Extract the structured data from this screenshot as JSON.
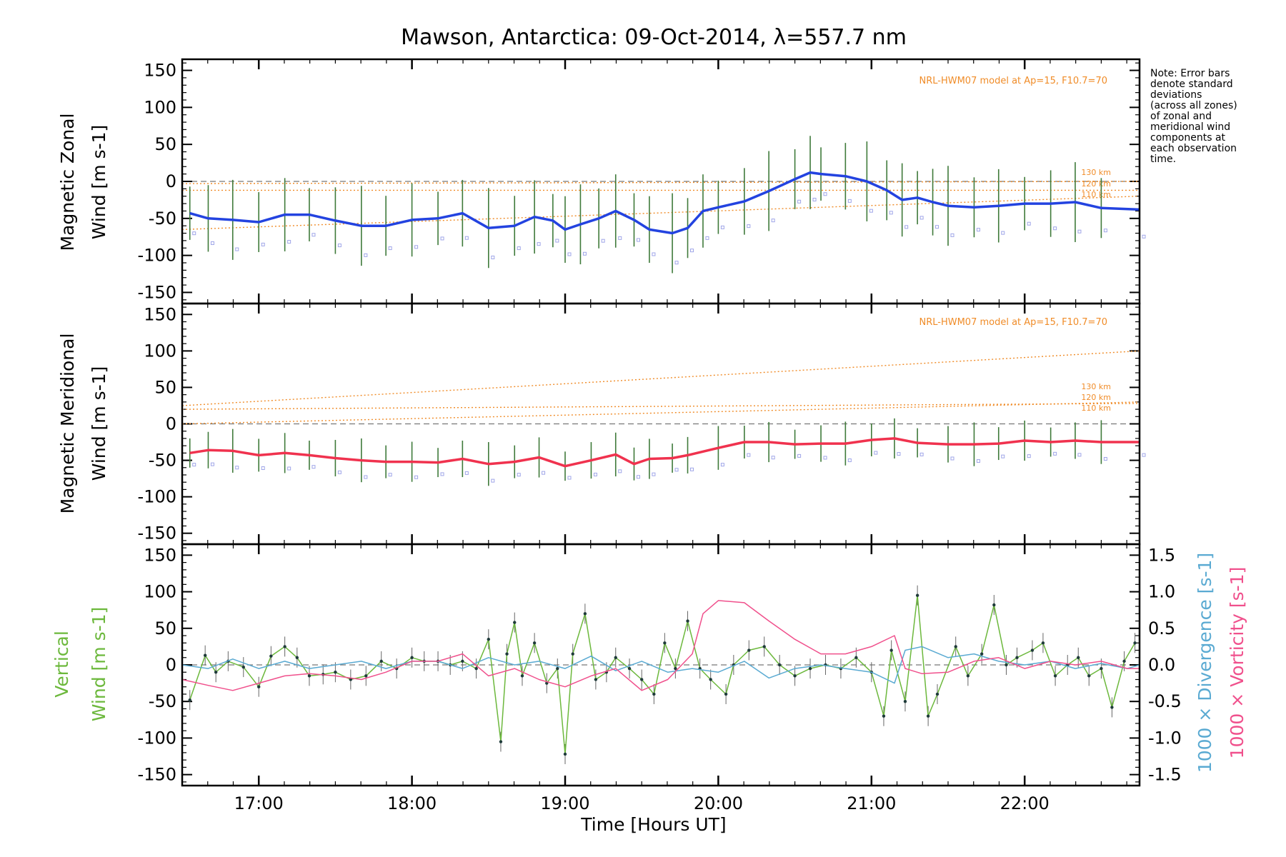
{
  "title": "Mawson, Antarctica: 09-Oct-2014, λ=557.7 nm",
  "note": [
    "Note: Error bars",
    "denote standard",
    "deviations",
    "(across all zones)",
    "of zonal and",
    "meridional wind",
    "components at",
    "each observation",
    "time."
  ],
  "xlabel": "Time [Hours UT]",
  "colors": {
    "zonal": "#2343e0",
    "meridional": "#f0324e",
    "vertical": "#6cb83c",
    "divergence": "#5aaad2",
    "vorticity": "#f0508c",
    "model": "#f08c28",
    "zone_points": "#9fa5e8"
  },
  "chart_data": [
    {
      "type": "line",
      "ylabel": [
        "Magnetic Zonal",
        "Wind [m s-1]"
      ],
      "ylim": [
        -165,
        165
      ],
      "yticks": [
        "150",
        "100",
        "50",
        "0",
        "-50",
        "-100",
        "-150"
      ],
      "xlim": [
        16.5,
        22.75
      ],
      "xticks": [
        "17:00",
        "18:00",
        "19:00",
        "20:00",
        "21:00",
        "22:00"
      ],
      "model_label": "NRL-HWM07 model at Ap=15, F10.7=70",
      "model_series": [
        {
          "name": "130 km",
          "x": [
            16.5,
            22.75
          ],
          "y": [
            -3,
            0
          ]
        },
        {
          "name": "120 km",
          "x": [
            16.5,
            22.75
          ],
          "y": [
            -12,
            -12
          ]
        },
        {
          "name": "110 km",
          "x": [
            16.5,
            22.75
          ],
          "y": [
            -65,
            -20
          ]
        }
      ],
      "series": [
        {
          "name": "Zonal wind",
          "error_bar_half": 45,
          "x": [
            16.55,
            16.67,
            16.83,
            17.0,
            17.17,
            17.33,
            17.5,
            17.67,
            17.83,
            18.0,
            18.17,
            18.33,
            18.5,
            18.67,
            18.8,
            18.92,
            19.0,
            19.1,
            19.22,
            19.33,
            19.45,
            19.55,
            19.7,
            19.8,
            19.9,
            20.0,
            20.17,
            20.33,
            20.5,
            20.6,
            20.67,
            20.83,
            20.97,
            21.1,
            21.2,
            21.3,
            21.4,
            21.5,
            21.67,
            21.83,
            22.0,
            22.17,
            22.33,
            22.5,
            22.75
          ],
          "y": [
            -43,
            -50,
            -52,
            -55,
            -45,
            -45,
            -53,
            -60,
            -60,
            -52,
            -50,
            -43,
            -63,
            -60,
            -48,
            -53,
            -65,
            -58,
            -50,
            -40,
            -52,
            -65,
            -70,
            -63,
            -40,
            -35,
            -27,
            -13,
            3,
            12,
            10,
            7,
            0,
            -12,
            -25,
            -22,
            -28,
            -33,
            -35,
            -33,
            -30,
            -30,
            -28,
            -36,
            -38
          ]
        }
      ]
    },
    {
      "type": "line",
      "ylabel": [
        "Magnetic Meridional",
        "Wind [m s-1]"
      ],
      "ylim": [
        -165,
        165
      ],
      "yticks": [
        "150",
        "100",
        "50",
        "0",
        "-50",
        "-100",
        "-150"
      ],
      "xlim": [
        16.5,
        22.75
      ],
      "xticks": [
        "17:00",
        "18:00",
        "19:00",
        "20:00",
        "21:00",
        "22:00"
      ],
      "model_label": "NRL-HWM07 model at Ap=15, F10.7=70",
      "model_series": [
        {
          "name": "130 km",
          "x": [
            16.5,
            22.75
          ],
          "y": [
            25,
            100
          ]
        },
        {
          "name": "120 km",
          "x": [
            16.5,
            22.75
          ],
          "y": [
            20,
            28
          ]
        },
        {
          "name": "110 km",
          "x": [
            16.5,
            22.75
          ],
          "y": [
            0,
            30
          ]
        }
      ],
      "series": [
        {
          "name": "Meridional wind",
          "error_bar_half": 25,
          "x": [
            16.55,
            16.67,
            16.83,
            17.0,
            17.17,
            17.33,
            17.5,
            17.67,
            17.83,
            18.0,
            18.17,
            18.33,
            18.5,
            18.67,
            18.83,
            19.0,
            19.17,
            19.33,
            19.45,
            19.55,
            19.7,
            19.8,
            20.0,
            20.17,
            20.33,
            20.5,
            20.67,
            20.83,
            21.0,
            21.15,
            21.3,
            21.5,
            21.67,
            21.83,
            22.0,
            22.17,
            22.33,
            22.5,
            22.75
          ],
          "y": [
            -40,
            -36,
            -37,
            -43,
            -40,
            -43,
            -47,
            -50,
            -52,
            -52,
            -53,
            -48,
            -55,
            -52,
            -46,
            -58,
            -50,
            -42,
            -55,
            -48,
            -47,
            -43,
            -33,
            -25,
            -25,
            -28,
            -27,
            -27,
            -22,
            -20,
            -26,
            -28,
            -28,
            -27,
            -23,
            -25,
            -23,
            -25,
            -25
          ]
        }
      ]
    },
    {
      "type": "line",
      "ylabel": [
        "Vertical",
        "Wind [m s-1]"
      ],
      "ylim": [
        -165,
        165
      ],
      "yticks": [
        "150",
        "100",
        "50",
        "0",
        "-50",
        "-100",
        "-150"
      ],
      "y2label": [
        "1000 × Divergence [s-1]",
        "1000 × Vorticity [s-1]"
      ],
      "y2lim": [
        -1.65,
        1.65
      ],
      "y2ticks": [
        "1.5",
        "1.0",
        "0.5",
        "0.0",
        "-0.5",
        "-1.0",
        "-1.5"
      ],
      "xlim": [
        16.5,
        22.75
      ],
      "xticks": [
        "17:00",
        "18:00",
        "19:00",
        "20:00",
        "21:00",
        "22:00"
      ],
      "series": [
        {
          "name": "Vertical wind",
          "axis": "left",
          "x": [
            16.55,
            16.65,
            16.72,
            16.8,
            16.9,
            17.0,
            17.08,
            17.17,
            17.25,
            17.33,
            17.42,
            17.5,
            17.6,
            17.7,
            17.8,
            17.9,
            18.0,
            18.08,
            18.17,
            18.25,
            18.33,
            18.42,
            18.5,
            18.58,
            18.62,
            18.67,
            18.72,
            18.8,
            18.88,
            18.95,
            19.0,
            19.05,
            19.13,
            19.2,
            19.27,
            19.33,
            19.42,
            19.5,
            19.58,
            19.65,
            19.72,
            19.8,
            19.88,
            19.95,
            20.05,
            20.1,
            20.2,
            20.3,
            20.4,
            20.5,
            20.6,
            20.7,
            20.8,
            20.9,
            21.0,
            21.08,
            21.13,
            21.22,
            21.3,
            21.37,
            21.43,
            21.55,
            21.63,
            21.72,
            21.8,
            21.88,
            21.95,
            22.05,
            22.12,
            22.2,
            22.28,
            22.35,
            22.42,
            22.5,
            22.57,
            22.65,
            22.72
          ],
          "y": [
            -48,
            13,
            -10,
            5,
            -3,
            -30,
            12,
            25,
            10,
            -15,
            -13,
            -10,
            -20,
            -15,
            5,
            -5,
            10,
            5,
            5,
            0,
            5,
            -5,
            35,
            -105,
            15,
            58,
            -15,
            30,
            -25,
            -5,
            -122,
            15,
            70,
            -20,
            -10,
            10,
            -5,
            -20,
            -40,
            30,
            -5,
            60,
            -5,
            -20,
            -40,
            0,
            20,
            25,
            0,
            -15,
            -5,
            0,
            -5,
            10,
            -10,
            -70,
            20,
            -50,
            95,
            -70,
            -40,
            25,
            -15,
            15,
            82,
            0,
            10,
            20,
            30,
            -15,
            0,
            10,
            -15,
            -5,
            -58,
            5,
            30
          ]
        },
        {
          "name": "Divergence",
          "axis": "right",
          "x": [
            16.5,
            16.67,
            16.83,
            17.0,
            17.17,
            17.33,
            17.5,
            17.67,
            17.83,
            18.0,
            18.17,
            18.33,
            18.5,
            18.67,
            18.83,
            19.0,
            19.17,
            19.33,
            19.5,
            19.67,
            19.83,
            20.0,
            20.17,
            20.33,
            20.5,
            20.67,
            20.83,
            21.0,
            21.15,
            21.22,
            21.33,
            21.5,
            21.67,
            21.83,
            22.0,
            22.17,
            22.33,
            22.5,
            22.67,
            22.75
          ],
          "y": [
            0.0,
            -0.05,
            0.08,
            -0.05,
            0.05,
            -0.05,
            0.0,
            0.05,
            -0.05,
            0.05,
            0.05,
            -0.05,
            0.1,
            0.0,
            0.05,
            -0.05,
            0.12,
            -0.08,
            0.05,
            -0.1,
            -0.05,
            -0.1,
            0.05,
            -0.18,
            -0.05,
            0.0,
            -0.05,
            -0.1,
            -0.25,
            0.2,
            0.25,
            0.1,
            0.15,
            0.05,
            0.0,
            0.05,
            -0.05,
            0.02,
            -0.05,
            0.0
          ]
        },
        {
          "name": "Vorticity",
          "axis": "right",
          "x": [
            16.5,
            16.67,
            16.83,
            17.0,
            17.17,
            17.33,
            17.5,
            17.67,
            17.83,
            18.0,
            18.17,
            18.33,
            18.5,
            18.67,
            18.83,
            19.0,
            19.17,
            19.33,
            19.5,
            19.67,
            19.83,
            19.9,
            20.0,
            20.17,
            20.33,
            20.5,
            20.67,
            20.83,
            21.0,
            21.15,
            21.22,
            21.33,
            21.5,
            21.67,
            21.83,
            22.0,
            22.17,
            22.33,
            22.5,
            22.67,
            22.75
          ],
          "y": [
            -0.2,
            -0.28,
            -0.35,
            -0.25,
            -0.15,
            -0.12,
            -0.15,
            -0.2,
            -0.1,
            0.05,
            0.05,
            0.15,
            -0.15,
            -0.05,
            -0.2,
            -0.3,
            -0.15,
            -0.05,
            -0.35,
            -0.2,
            0.15,
            0.7,
            0.88,
            0.85,
            0.6,
            0.35,
            0.15,
            0.15,
            0.25,
            0.4,
            -0.05,
            -0.12,
            -0.1,
            0.05,
            0.1,
            -0.05,
            0.05,
            0.0,
            0.05,
            -0.05,
            -0.05
          ]
        }
      ]
    }
  ]
}
